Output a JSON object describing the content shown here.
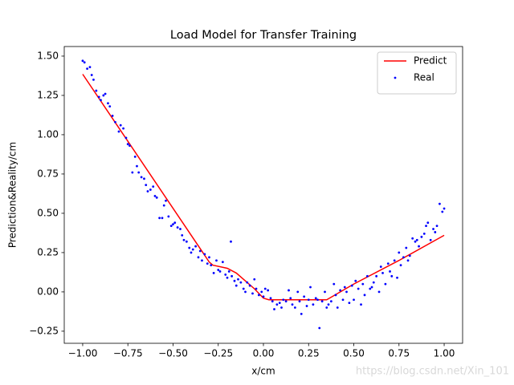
{
  "chart_data": {
    "type": "line",
    "title": "Load Model for Transfer Training",
    "xlabel": "x/cm",
    "ylabel": "Prediction&Reality/cm",
    "watermark": "https://blog.csdn.net/Xin_101",
    "xlim": [
      -1.102,
      1.102
    ],
    "ylim": [
      -0.327,
      1.561
    ],
    "xticks": [
      {
        "value": -1,
        "label": "−1.00"
      },
      {
        "value": -0.75,
        "label": "−0.75"
      },
      {
        "value": -0.5,
        "label": "−0.50"
      },
      {
        "value": -0.25,
        "label": "−0.25"
      },
      {
        "value": 0,
        "label": "0.00"
      },
      {
        "value": 0.25,
        "label": "0.25"
      },
      {
        "value": 0.5,
        "label": "0.50"
      },
      {
        "value": 0.75,
        "label": "0.75"
      },
      {
        "value": 1,
        "label": "1.00"
      }
    ],
    "yticks": [
      {
        "value": -0.25,
        "label": "−0.25"
      },
      {
        "value": 0,
        "label": "0.00"
      },
      {
        "value": 0.25,
        "label": "0.25"
      },
      {
        "value": 0.5,
        "label": "0.50"
      },
      {
        "value": 0.75,
        "label": "0.75"
      },
      {
        "value": 1,
        "label": "1.00"
      },
      {
        "value": 1.25,
        "label": "1.25"
      },
      {
        "value": 1.5,
        "label": "1.50"
      }
    ],
    "legend": "upper right",
    "series": [
      {
        "name": "Predict",
        "type": "line",
        "color": "#ff0000",
        "x": [
          -1.0,
          -0.3,
          -0.28,
          -0.2,
          -0.15,
          -0.05,
          0.0,
          0.03,
          0.35,
          0.5,
          0.75,
          1.0
        ],
        "values": [
          1.385,
          0.19,
          0.17,
          0.15,
          0.12,
          0.02,
          -0.04,
          -0.05,
          -0.05,
          0.05,
          0.2,
          0.36
        ]
      },
      {
        "name": "Real",
        "type": "scatter",
        "color": "#0000ff",
        "x": [
          -1.0,
          -0.99,
          -0.975,
          -0.96,
          -0.95,
          -0.94,
          -0.925,
          -0.91,
          -0.9,
          -0.885,
          -0.875,
          -0.86,
          -0.85,
          -0.835,
          -0.82,
          -0.8,
          -0.79,
          -0.775,
          -0.76,
          -0.75,
          -0.74,
          -0.725,
          -0.71,
          -0.7,
          -0.69,
          -0.675,
          -0.66,
          -0.65,
          -0.64,
          -0.625,
          -0.61,
          -0.6,
          -0.59,
          -0.575,
          -0.56,
          -0.55,
          -0.54,
          -0.525,
          -0.51,
          -0.5,
          -0.49,
          -0.475,
          -0.46,
          -0.45,
          -0.44,
          -0.425,
          -0.41,
          -0.4,
          -0.39,
          -0.375,
          -0.36,
          -0.35,
          -0.34,
          -0.325,
          -0.31,
          -0.3,
          -0.29,
          -0.275,
          -0.26,
          -0.25,
          -0.24,
          -0.225,
          -0.21,
          -0.2,
          -0.19,
          -0.18,
          -0.175,
          -0.16,
          -0.15,
          -0.14,
          -0.125,
          -0.11,
          -0.1,
          -0.09,
          -0.075,
          -0.06,
          -0.05,
          -0.04,
          -0.025,
          -0.01,
          0.0,
          0.01,
          0.025,
          0.04,
          0.05,
          0.06,
          0.075,
          0.09,
          0.1,
          0.11,
          0.125,
          0.14,
          0.15,
          0.16,
          0.175,
          0.19,
          0.2,
          0.21,
          0.225,
          0.24,
          0.25,
          0.26,
          0.275,
          0.29,
          0.3,
          0.31,
          0.325,
          0.34,
          0.35,
          0.36,
          0.375,
          0.39,
          0.4,
          0.41,
          0.425,
          0.44,
          0.45,
          0.46,
          0.475,
          0.49,
          0.5,
          0.51,
          0.525,
          0.54,
          0.55,
          0.56,
          0.575,
          0.59,
          0.6,
          0.61,
          0.625,
          0.64,
          0.65,
          0.66,
          0.675,
          0.69,
          0.7,
          0.71,
          0.725,
          0.74,
          0.75,
          0.76,
          0.775,
          0.79,
          0.8,
          0.81,
          0.825,
          0.84,
          0.85,
          0.86,
          0.875,
          0.89,
          0.9,
          0.91,
          0.925,
          0.94,
          0.95,
          0.96,
          0.975,
          0.99,
          1.0
        ],
        "values": [
          1.47,
          1.46,
          1.42,
          1.43,
          1.38,
          1.35,
          1.28,
          1.24,
          1.22,
          1.25,
          1.26,
          1.2,
          1.18,
          1.12,
          1.08,
          1.02,
          1.06,
          1.04,
          0.98,
          0.94,
          0.93,
          0.76,
          0.86,
          0.8,
          0.76,
          0.73,
          0.72,
          0.68,
          0.64,
          0.65,
          0.67,
          0.61,
          0.6,
          0.47,
          0.47,
          0.55,
          0.58,
          0.48,
          0.42,
          0.43,
          0.44,
          0.41,
          0.4,
          0.36,
          0.33,
          0.32,
          0.28,
          0.25,
          0.27,
          0.29,
          0.22,
          0.26,
          0.2,
          0.24,
          0.18,
          0.22,
          0.17,
          0.12,
          0.2,
          0.14,
          0.13,
          0.19,
          0.11,
          0.09,
          0.13,
          0.32,
          0.1,
          0.07,
          0.04,
          0.08,
          0.06,
          0.02,
          0.0,
          0.06,
          0.04,
          -0.01,
          0.08,
          0.02,
          -0.02,
          0.0,
          -0.03,
          0.02,
          0.01,
          -0.04,
          -0.06,
          -0.11,
          -0.08,
          -0.07,
          -0.1,
          -0.05,
          -0.06,
          0.01,
          -0.04,
          -0.08,
          -0.1,
          0.0,
          -0.06,
          -0.14,
          -0.03,
          -0.09,
          -0.05,
          0.03,
          -0.08,
          -0.04,
          -0.05,
          -0.23,
          -0.06,
          0.0,
          -0.1,
          -0.08,
          -0.06,
          0.05,
          -0.02,
          -0.1,
          0.01,
          -0.05,
          0.03,
          0.0,
          -0.07,
          0.04,
          -0.05,
          0.07,
          0.02,
          -0.08,
          0.05,
          -0.02,
          0.1,
          0.02,
          0.03,
          0.06,
          0.1,
          0.0,
          0.16,
          0.12,
          0.05,
          0.18,
          0.13,
          0.1,
          0.2,
          0.09,
          0.25,
          0.17,
          0.22,
          0.28,
          0.2,
          0.23,
          0.34,
          0.32,
          0.33,
          0.29,
          0.35,
          0.37,
          0.42,
          0.44,
          0.33,
          0.4,
          0.38,
          0.42,
          0.56,
          0.51,
          0.53
        ]
      }
    ]
  }
}
